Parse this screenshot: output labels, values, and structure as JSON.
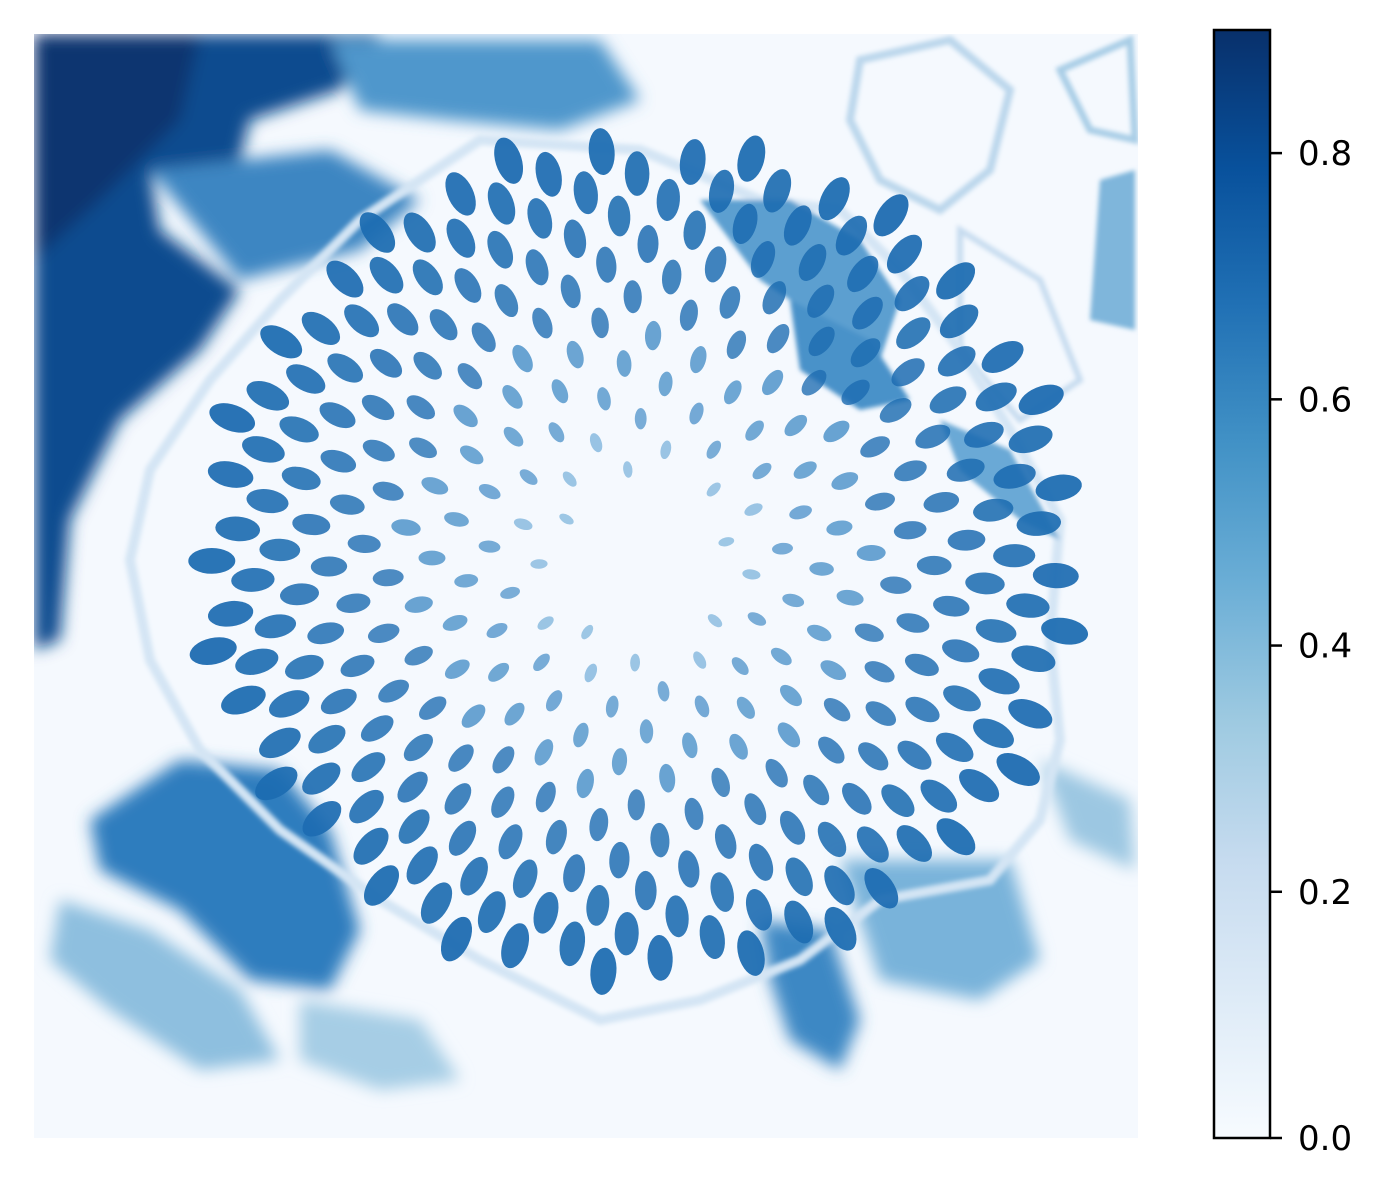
{
  "chart_data": {
    "type": "heatmap",
    "title": "",
    "xlabel": "",
    "ylabel": "",
    "axes_visible": false,
    "image_description_free": true,
    "colormap": "Blues",
    "colormap_stops": [
      "#f7fbff",
      "#deebf7",
      "#c6dbef",
      "#9ecae1",
      "#6baed6",
      "#4292c6",
      "#2171b5",
      "#08519c",
      "#08306b"
    ],
    "colorbar": {
      "range": [
        0.0,
        0.9
      ],
      "ticks": [
        {
          "value": 0.0,
          "label": "0.0"
        },
        {
          "value": 0.2,
          "label": "0.2"
        },
        {
          "value": 0.4,
          "label": "0.4"
        },
        {
          "value": 0.6,
          "label": "0.6"
        },
        {
          "value": 0.8,
          "label": "0.8"
        }
      ],
      "placement": "right"
    }
  }
}
